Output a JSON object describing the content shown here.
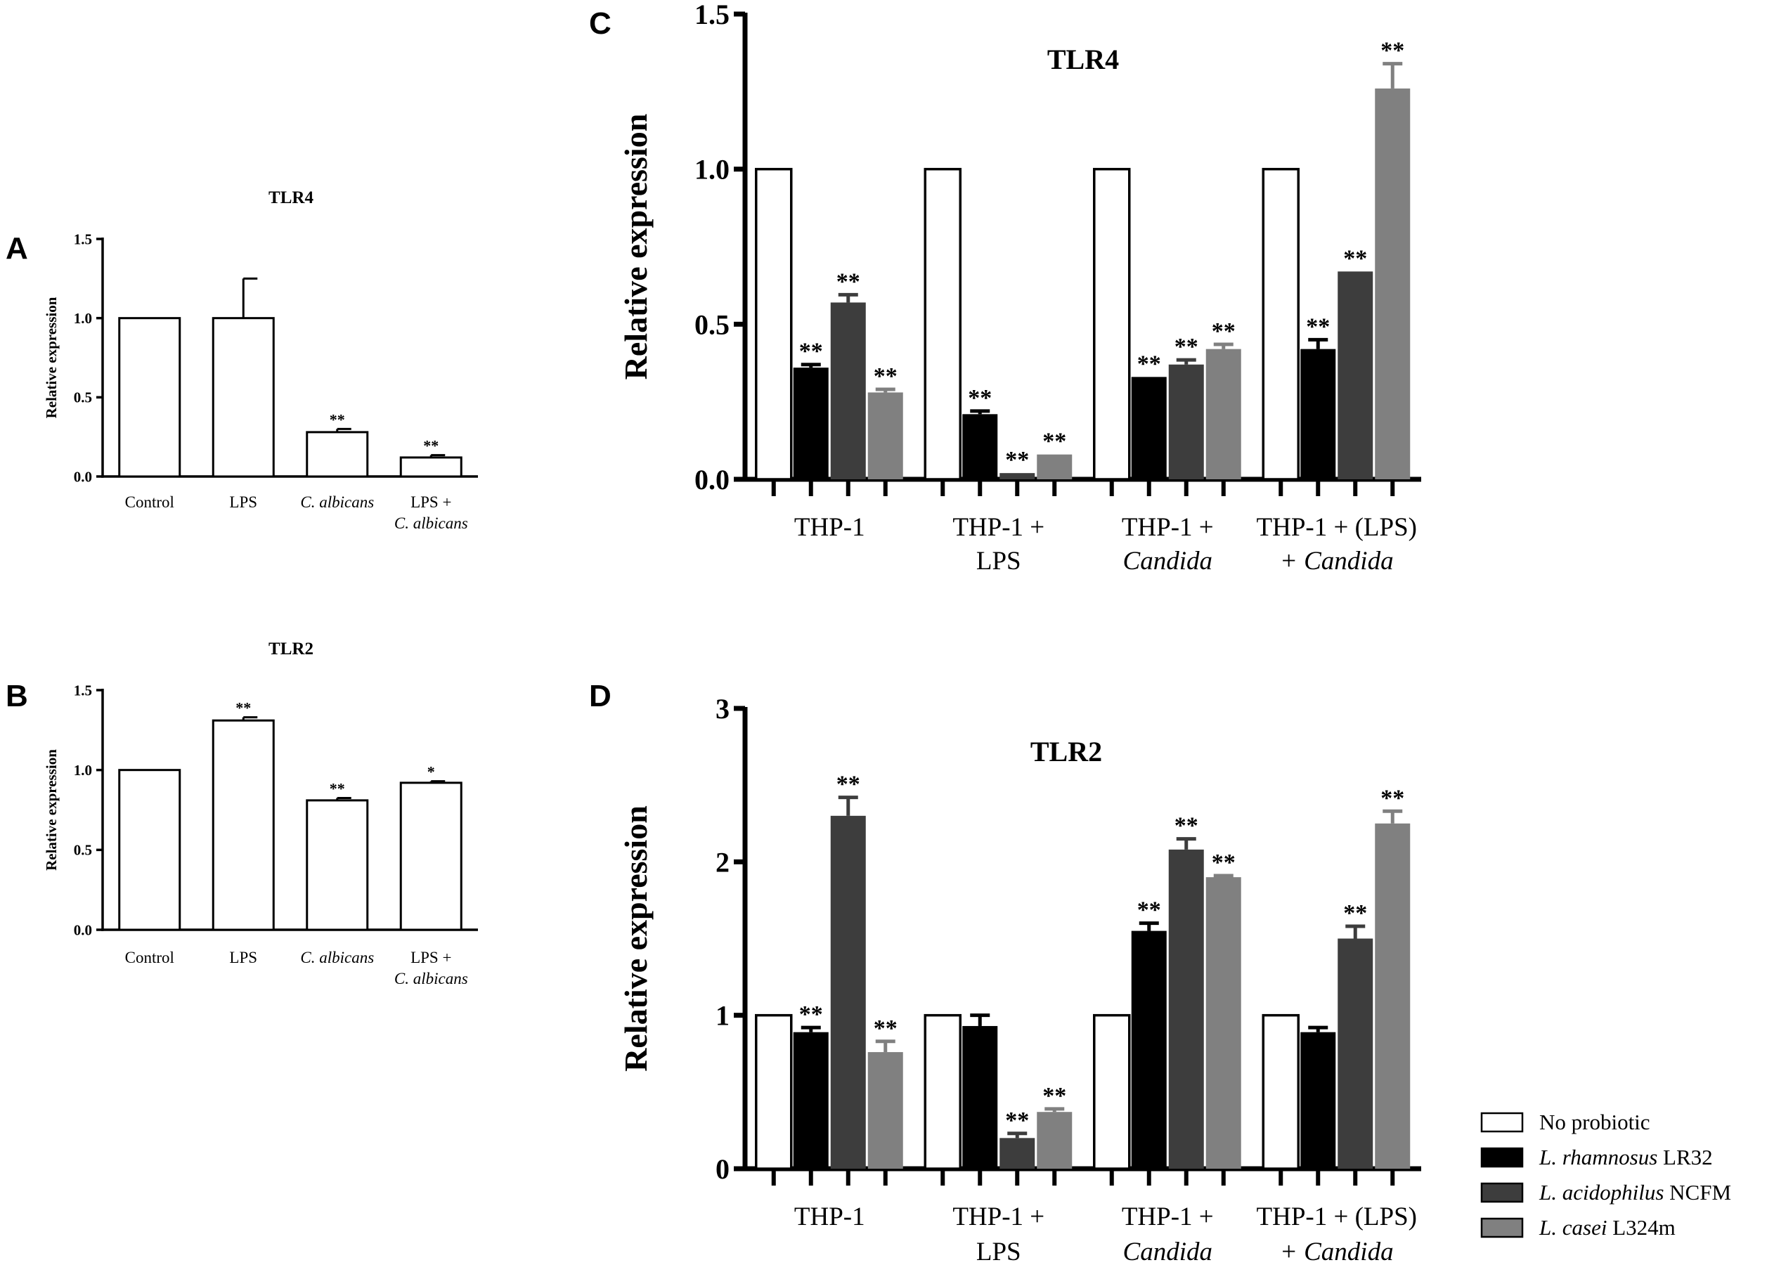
{
  "panel_letters": [
    "A",
    "B",
    "C",
    "D"
  ],
  "chart_data": [
    {
      "id": "A",
      "type": "bar",
      "title": "TLR4",
      "ylabel": "Relative expression",
      "xlabel": "",
      "ylim": [
        0,
        1.5
      ],
      "yticks": [
        "0.0",
        "0.5",
        "1.0",
        "1.5"
      ],
      "ytick_values": [
        0,
        0.5,
        1.0,
        1.5
      ],
      "categories": [
        {
          "lines": [
            "Control"
          ],
          "italic": [
            false
          ]
        },
        {
          "lines": [
            "LPS"
          ],
          "italic": [
            false
          ]
        },
        {
          "lines": [
            "C. albicans"
          ],
          "italic": [
            true
          ]
        },
        {
          "lines": [
            "LPS +",
            "C. albicans"
          ],
          "italic": [
            false,
            true
          ]
        }
      ],
      "values": [
        1.0,
        1.0,
        0.28,
        0.12
      ],
      "errors": [
        0,
        0.25,
        0.02,
        0.015
      ],
      "significance": [
        "",
        "",
        "**",
        "**"
      ]
    },
    {
      "id": "B",
      "type": "bar",
      "title": "TLR2",
      "ylabel": "Relative expression",
      "xlabel": "",
      "ylim": [
        0,
        1.5
      ],
      "yticks": [
        "0.0",
        "0.5",
        "1.0",
        "1.5"
      ],
      "ytick_values": [
        0,
        0.5,
        1.0,
        1.5
      ],
      "categories": [
        {
          "lines": [
            "Control"
          ],
          "italic": [
            false
          ]
        },
        {
          "lines": [
            "LPS"
          ],
          "italic": [
            false
          ]
        },
        {
          "lines": [
            "C. albicans"
          ],
          "italic": [
            true
          ]
        },
        {
          "lines": [
            "LPS +",
            "C. albicans"
          ],
          "italic": [
            false,
            true
          ]
        }
      ],
      "values": [
        1.0,
        1.31,
        0.81,
        0.92
      ],
      "errors": [
        0,
        0.02,
        0.015,
        0.01
      ],
      "significance": [
        "",
        "**",
        "**",
        "*"
      ]
    },
    {
      "id": "C",
      "type": "bar",
      "title": "TLR4",
      "ylabel": "Relative expression",
      "xlabel": "",
      "ylim": [
        0,
        1.5
      ],
      "yticks": [
        "0.0",
        "0.5",
        "1.0",
        "1.5"
      ],
      "ytick_values": [
        0,
        0.5,
        1.0,
        1.5
      ],
      "categories": [
        {
          "lines": [
            "THP-1"
          ],
          "italic": [
            false
          ]
        },
        {
          "lines": [
            "THP-1 +",
            "LPS"
          ],
          "italic": [
            false,
            false
          ]
        },
        {
          "lines": [
            "THP-1 +",
            "Candida"
          ],
          "italic": [
            false,
            true
          ]
        },
        {
          "lines": [
            "THP-1 + (LPS)",
            "+ Candida"
          ],
          "italic": [
            false,
            true
          ]
        }
      ],
      "series": [
        {
          "name": "No probiotic",
          "values": [
            1.0,
            1.0,
            1.0,
            1.0
          ],
          "errors": [
            0,
            0,
            0,
            0
          ],
          "significance": [
            "",
            "",
            "",
            ""
          ]
        },
        {
          "name": "L. rhamnosus LR32",
          "values": [
            0.36,
            0.21,
            0.33,
            0.42
          ],
          "errors": [
            0.01,
            0.01,
            0,
            0.03
          ],
          "significance": [
            "**",
            "**",
            "**",
            "**"
          ]
        },
        {
          "name": "L. acidophilus NCFM",
          "values": [
            0.57,
            0.02,
            0.37,
            0.67
          ],
          "errors": [
            0.025,
            0,
            0.015,
            0
          ],
          "significance": [
            "**",
            "**",
            "**",
            "**"
          ]
        },
        {
          "name": "L. casei L324m",
          "values": [
            0.28,
            0.08,
            0.42,
            1.26
          ],
          "errors": [
            0.01,
            0,
            0.015,
            0.08
          ],
          "significance": [
            "**",
            "**",
            "**",
            "**"
          ]
        }
      ]
    },
    {
      "id": "D",
      "type": "bar",
      "title": "TLR2",
      "ylabel": "Relative expression",
      "xlabel": "",
      "ylim": [
        0,
        3
      ],
      "yticks": [
        "0",
        "1",
        "2",
        "3"
      ],
      "ytick_values": [
        0,
        1,
        2,
        3
      ],
      "categories": [
        {
          "lines": [
            "THP-1"
          ],
          "italic": [
            false
          ]
        },
        {
          "lines": [
            "THP-1 +",
            "LPS"
          ],
          "italic": [
            false,
            false
          ]
        },
        {
          "lines": [
            "THP-1 +",
            "Candida"
          ],
          "italic": [
            false,
            true
          ]
        },
        {
          "lines": [
            "THP-1 + (LPS)",
            "+ Candida"
          ],
          "italic": [
            false,
            true
          ]
        }
      ],
      "series": [
        {
          "name": "No probiotic",
          "values": [
            1.0,
            1.0,
            1.0,
            1.0
          ],
          "errors": [
            0,
            0,
            0,
            0
          ],
          "significance": [
            "",
            "",
            "",
            ""
          ]
        },
        {
          "name": "L. rhamnosus LR32",
          "values": [
            0.89,
            0.93,
            1.55,
            0.89
          ],
          "errors": [
            0.03,
            0.07,
            0.05,
            0.03
          ],
          "significance": [
            "**",
            "",
            "**",
            ""
          ]
        },
        {
          "name": "L. acidophilus NCFM",
          "values": [
            2.3,
            0.2,
            2.08,
            1.5
          ],
          "errors": [
            0.12,
            0.03,
            0.07,
            0.08
          ],
          "significance": [
            "**",
            "**",
            "**",
            "**"
          ]
        },
        {
          "name": "L. casei L324m",
          "values": [
            0.76,
            0.37,
            1.9,
            2.25
          ],
          "errors": [
            0.07,
            0.02,
            0.01,
            0.08
          ],
          "significance": [
            "**",
            "**",
            "**",
            "**"
          ]
        }
      ]
    }
  ],
  "legend": {
    "items": [
      {
        "italic_part": "",
        "plain_part": "No probiotic",
        "color": "#ffffff"
      },
      {
        "italic_part": "L. rhamnosus",
        "plain_part": " LR32",
        "color": "#000000"
      },
      {
        "italic_part": "L. acidophilus",
        "plain_part": " NCFM",
        "color": "#3d3d3d"
      },
      {
        "italic_part": "L. casei",
        "plain_part": " L324m",
        "color": "#808080"
      }
    ]
  },
  "colors": {
    "series": [
      "#ffffff",
      "#000000",
      "#3d3d3d",
      "#808080"
    ],
    "axis": "#000000"
  }
}
